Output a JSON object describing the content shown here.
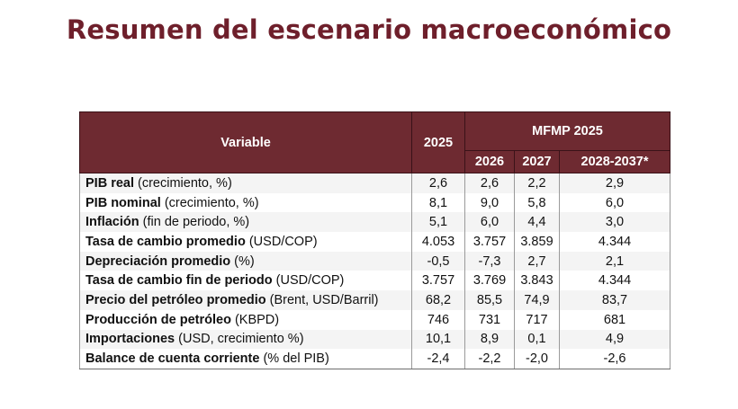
{
  "title": "Resumen del escenario macroeconómico",
  "table": {
    "header": {
      "variable": "Variable",
      "year_2025": "2025",
      "group": "MFMP 2025",
      "sub": [
        "2026",
        "2027",
        "2028-2037*"
      ]
    },
    "rows": [
      {
        "name": "PIB real",
        "unit": " (crecimiento, %)",
        "values": [
          "2,6",
          "2,6",
          "2,2",
          "2,9"
        ]
      },
      {
        "name": "PIB nominal",
        "unit": " (crecimiento, %)",
        "values": [
          "8,1",
          "9,0",
          "5,8",
          "6,0"
        ]
      },
      {
        "name": "Inflación",
        "unit": " (fin de periodo, %)",
        "values": [
          "5,1",
          "6,0",
          "4,4",
          "3,0"
        ]
      },
      {
        "name": "Tasa de cambio promedio",
        "unit": " (USD/COP)",
        "values": [
          "4.053",
          "3.757",
          "3.859",
          "4.344"
        ]
      },
      {
        "name": "Depreciación promedio",
        "unit": " (%)",
        "values": [
          "-0,5",
          "-7,3",
          "2,7",
          "2,1"
        ]
      },
      {
        "name": "Tasa de cambio fin de periodo",
        "unit": " (USD/COP)",
        "values": [
          "3.757",
          "3.769",
          "3.843",
          "4.344"
        ]
      },
      {
        "name": "Precio del petróleo promedio",
        "unit": " (Brent, USD/Barril)",
        "values": [
          "68,2",
          "85,5",
          "74,9",
          "83,7"
        ]
      },
      {
        "name": "Producción de petróleo",
        "unit": " (KBPD)",
        "values": [
          "746",
          "731",
          "717",
          "681"
        ]
      },
      {
        "name": "Importaciones",
        "unit": " (USD, crecimiento %)",
        "values": [
          "10,1",
          "8,9",
          "0,1",
          "4,9"
        ]
      },
      {
        "name": "Balance de cuenta corriente",
        "unit": " (% del PIB)",
        "values": [
          "-2,4",
          "-2,2",
          "-2,0",
          "-2,6"
        ]
      }
    ]
  },
  "colors": {
    "title": "#6e1f2b",
    "header_bg": "#6e2a31",
    "header_text": "#ffffff"
  }
}
